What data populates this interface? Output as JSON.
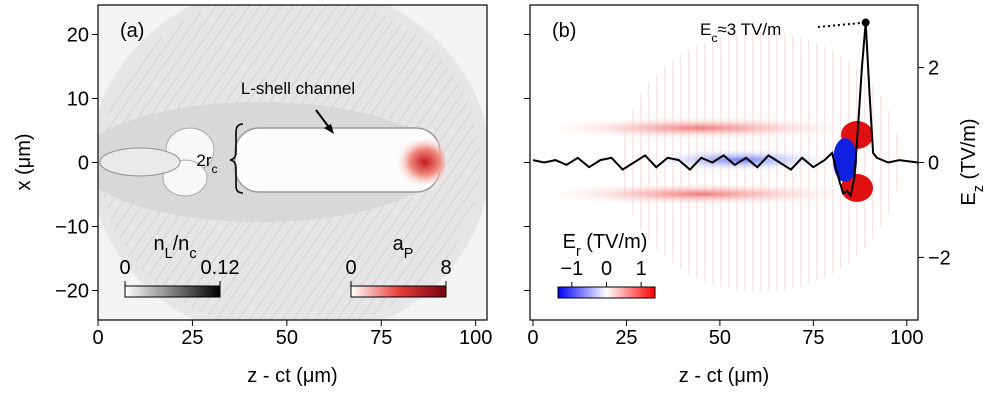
{
  "chart_data": [
    {
      "type": "heatmap",
      "label": "(a)",
      "x_label": "z - ct (μm)",
      "y_label": "x (μm)",
      "xlim": [
        0,
        103
      ],
      "xticks": [
        0,
        25,
        50,
        75,
        100
      ],
      "ylim": [
        -24.6,
        24.6
      ],
      "yticks": [
        20,
        10,
        0,
        {
          "value": -10,
          "label": "−10"
        },
        {
          "value": -20,
          "label": "−20"
        }
      ],
      "annotations": {
        "channel": "L-shell channel",
        "radius": [
          "2r",
          "c"
        ]
      },
      "colorbars": [
        {
          "label": [
            "n",
            "L",
            "/n",
            "c"
          ],
          "clim": [
            0,
            0.12
          ],
          "ticks": [
            0,
            0.12
          ],
          "colors": [
            "#ffffff",
            "#000000"
          ]
        },
        {
          "label": [
            "a",
            "P"
          ],
          "clim": [
            0,
            8
          ],
          "ticks": [
            0,
            8
          ],
          "colors": [
            "#ffffff",
            "#e8403a",
            "#7a0010"
          ]
        }
      ]
    },
    {
      "type": "heatmap",
      "label": "(b)",
      "x_label": "z - ct (μm)",
      "y2_label": [
        "E",
        "z",
        " (TV/m)"
      ],
      "xlim": [
        -0.8,
        103
      ],
      "xticks": [
        0,
        25,
        50,
        75,
        100
      ],
      "ylim": [
        -24.6,
        24.6
      ],
      "yticks": [
        20,
        10,
        0,
        -10,
        -20
      ],
      "y2lim": [
        -3.32,
        3.32
      ],
      "y2ticks": [
        2,
        0,
        {
          "value": -2,
          "label": "−2"
        }
      ],
      "series": [
        {
          "color": "#000000",
          "axis": "y2",
          "x": [
            0,
            3,
            6,
            9,
            12,
            15,
            18,
            21,
            24,
            27,
            30,
            33,
            36,
            39,
            42,
            45,
            48,
            51,
            54,
            57,
            60,
            63,
            66,
            69,
            72,
            75,
            78,
            80,
            82,
            83,
            84,
            85,
            86,
            87,
            88,
            89,
            90,
            91,
            92,
            95,
            98,
            103
          ],
          "values": [
            0.05,
            0,
            0.05,
            -0.05,
            0.1,
            -0.1,
            0.05,
            0.1,
            -0.15,
            0,
            0.15,
            -0.1,
            0.1,
            0.05,
            -0.15,
            0.1,
            0,
            0.15,
            -0.05,
            0.1,
            -0.1,
            0.15,
            0,
            -0.15,
            0.1,
            -0.1,
            0.05,
            0.2,
            -0.4,
            -0.65,
            -0.6,
            -0.7,
            -0.3,
            0.8,
            2.0,
            2.95,
            1.5,
            0.2,
            0.1,
            0.0,
            0.05,
            0
          ]
        }
      ],
      "annotation": [
        "E",
        "c",
        "≈3 TV/m"
      ],
      "colorbars": [
        {
          "label": [
            "E",
            "r",
            " (TV/m)"
          ],
          "clim": [
            -1.4,
            1.4
          ],
          "ticks": [
            {
              "value": -1,
              "label": "−1"
            },
            0,
            1
          ],
          "colors": [
            "#0000ff",
            "#ffffff",
            "#ff0000"
          ]
        }
      ]
    }
  ]
}
